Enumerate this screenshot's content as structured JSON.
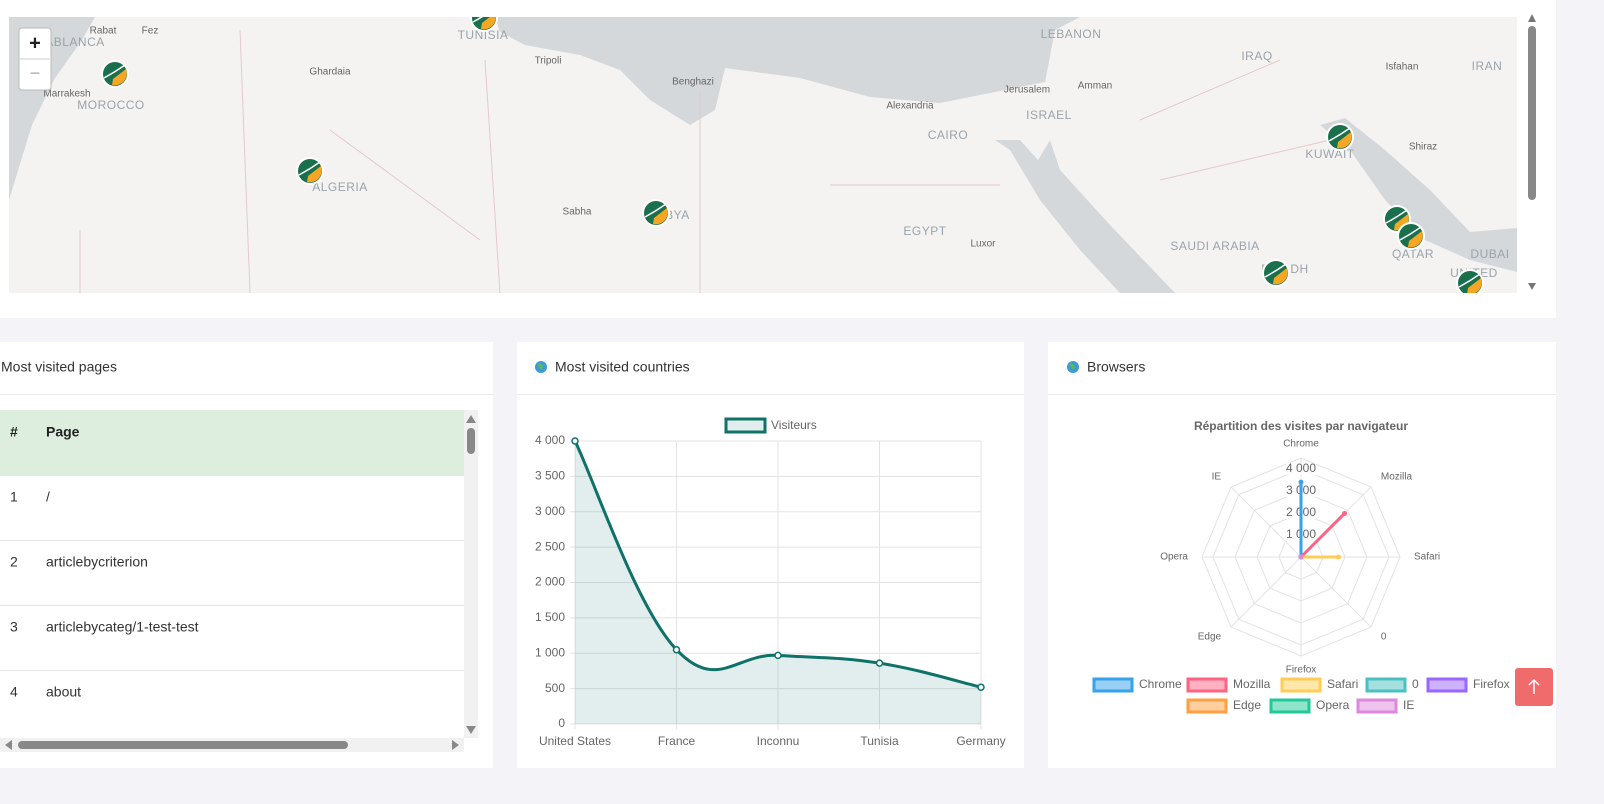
{
  "map": {
    "zoom_in": "+",
    "zoom_out": "−",
    "labels": [
      "ABLANCA",
      "Rabat",
      "Fez",
      "Marrakesh",
      "MOROCCO",
      "Ghardaia",
      "TUNISIA",
      "Tripoli",
      "ALGERIA",
      "Sabha",
      "LIBYA",
      "Benghazi",
      "Alexandria",
      "CAIRO",
      "EGYPT",
      "Luxor",
      "LEBANON",
      "Jerusalem",
      "Amman",
      "ISRAEL",
      "IRAQ",
      "Isfahan",
      "IRAN",
      "KUWAIT",
      "Shiraz",
      "SAUDI ARABIA",
      "RIYADH",
      "QATAR",
      "DUBAI",
      "UNITED"
    ]
  },
  "pages_card": {
    "title": "Most visited pages",
    "table": {
      "header": [
        "#",
        "Page"
      ],
      "rows": [
        [
          1,
          "/"
        ],
        [
          2,
          "articlebycriterion"
        ],
        [
          3,
          "articlebycateg/1-test-test"
        ],
        [
          4,
          "about"
        ]
      ]
    }
  },
  "countries_card": {
    "title": "Most visited countries"
  },
  "browsers_card": {
    "title": "Browsers"
  },
  "chart_data": [
    {
      "type": "line",
      "categories": [
        "United States",
        "France",
        "Inconnu",
        "Tunisia",
        "Germany"
      ],
      "series": [
        {
          "name": "Visiteurs",
          "color": "#0e7268",
          "values": [
            4000,
            1050,
            970,
            860,
            520
          ]
        }
      ],
      "ylim": [
        0,
        4000
      ],
      "yticks": [
        0,
        500,
        {
          "value": 1000,
          "label": "1 000"
        },
        {
          "value": 1500,
          "label": "1 500"
        },
        {
          "value": 2000,
          "label": "2 000"
        },
        {
          "value": 2500,
          "label": "2 500"
        },
        {
          "value": 3000,
          "label": "3 000"
        },
        {
          "value": 3500,
          "label": "3 500"
        },
        {
          "value": 4000,
          "label": "4 000"
        }
      ],
      "grid": true,
      "fill": true
    },
    {
      "type": "radar",
      "title": "Répartition des visites par navigateur",
      "categories": [
        "Chrome",
        "Mozilla",
        "Safari",
        "0",
        "Firefox",
        "Edge",
        "Opera",
        "IE"
      ],
      "values": [
        3400,
        2800,
        1700,
        0,
        0,
        0,
        0,
        0
      ],
      "colors": [
        "#36a2eb",
        "#ff6384",
        "#ffcd56",
        "#4bc0c0",
        "#9966ff",
        "#ff9f40",
        "#20c997",
        "#dd88dd"
      ],
      "rlim": [
        0,
        4500
      ],
      "rticks": [
        {
          "value": 1000,
          "label": "1 000"
        },
        {
          "value": 2000,
          "label": "2 000"
        },
        {
          "value": 3000,
          "label": "3 000"
        },
        {
          "value": 4000,
          "label": "4 000"
        }
      ]
    }
  ]
}
